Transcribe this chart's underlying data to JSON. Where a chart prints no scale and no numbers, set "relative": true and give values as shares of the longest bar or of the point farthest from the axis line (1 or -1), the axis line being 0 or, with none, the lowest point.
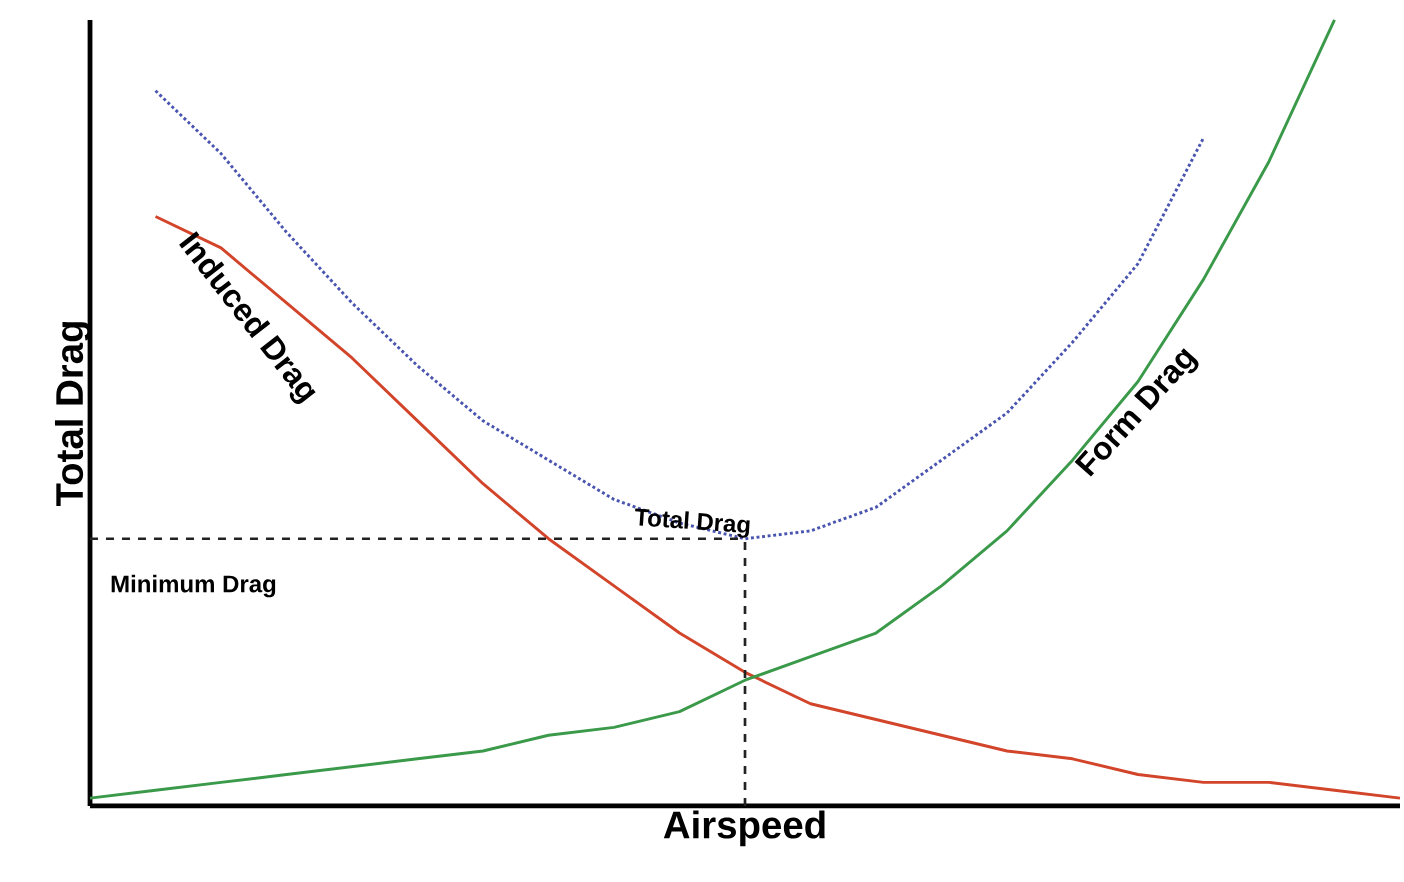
{
  "chart_data": {
    "type": "line",
    "relative": true,
    "xlabel": "Airspeed",
    "ylabel": "Total Drag",
    "categories": [
      null,
      null,
      null,
      null,
      null,
      null,
      null,
      null,
      null,
      null,
      null,
      null,
      null,
      null,
      null,
      null,
      null,
      null,
      null,
      null,
      null
    ],
    "series": [
      {
        "name": "Induced Drag",
        "color": "#d2452a",
        "line_style": "solid",
        "values": [
          null,
          0.75,
          0.71,
          0.64,
          0.57,
          0.49,
          0.41,
          0.34,
          0.28,
          0.22,
          0.17,
          0.13,
          0.11,
          0.09,
          0.07,
          0.06,
          0.04,
          0.03,
          0.03,
          0.02,
          0.01
        ]
      },
      {
        "name": "Form Drag",
        "color": "#3a9a4a",
        "line_style": "solid",
        "values": [
          0.01,
          0.02,
          0.03,
          0.04,
          0.05,
          0.06,
          0.07,
          0.09,
          0.1,
          0.12,
          0.16,
          0.19,
          0.22,
          0.28,
          0.35,
          0.44,
          0.54,
          0.67,
          0.82,
          1.0,
          null
        ]
      },
      {
        "name": "Total Drag",
        "color": "#4a55b0",
        "line_style": "dotted",
        "values": [
          null,
          0.91,
          0.83,
          0.73,
          0.64,
          0.56,
          0.49,
          0.44,
          0.39,
          0.36,
          0.34,
          0.35,
          0.38,
          0.44,
          0.5,
          0.59,
          0.69,
          0.85,
          null,
          null,
          null
        ]
      }
    ],
    "ref_lines": [
      {
        "axis": "y",
        "value": 0.34,
        "label": "Minimum Drag",
        "color": "#222222",
        "line_style": "dashed"
      }
    ],
    "marker": "none"
  }
}
